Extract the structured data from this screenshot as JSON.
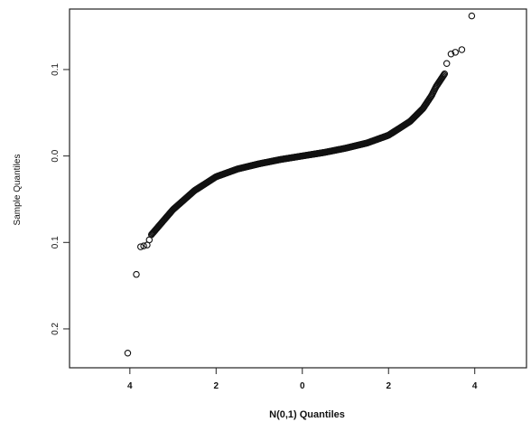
{
  "chart_data": {
    "type": "scatter",
    "xlabel": "N(0,1) Quantiles",
    "ylabel": "Sample Quantiles",
    "x_ticks": [
      {
        "value": -4,
        "label": "4"
      },
      {
        "value": -2,
        "label": "2"
      },
      {
        "value": 0,
        "label": "0"
      },
      {
        "value": 2,
        "label": "2"
      },
      {
        "value": 4,
        "label": "4"
      }
    ],
    "y_ticks": [
      {
        "value": 0.1,
        "label": "0.1"
      },
      {
        "value": 0.0,
        "label": "0.0"
      },
      {
        "value": -0.1,
        "label": "0.1"
      },
      {
        "value": -0.2,
        "label": "0.2"
      }
    ],
    "xlim": [
      -5.4,
      5.2
    ],
    "ylim": [
      -0.245,
      0.17
    ],
    "grid": false,
    "curve": {
      "x_range": [
        -3.5,
        3.3
      ],
      "profile_x": [
        -3.5,
        -3.0,
        -2.5,
        -2.0,
        -1.5,
        -1.0,
        -0.5,
        0.0,
        0.5,
        1.0,
        1.5,
        2.0,
        2.5,
        2.8,
        3.0,
        3.1,
        3.3
      ],
      "profile_y": [
        -0.091,
        -0.062,
        -0.04,
        -0.024,
        -0.015,
        -0.009,
        -0.004,
        0.0,
        0.004,
        0.009,
        0.015,
        0.024,
        0.04,
        0.055,
        0.07,
        0.08,
        0.095
      ]
    },
    "tail_points": [
      {
        "x": -4.05,
        "y": -0.228
      },
      {
        "x": -3.85,
        "y": -0.137
      },
      {
        "x": -3.75,
        "y": -0.105
      },
      {
        "x": -3.68,
        "y": -0.104
      },
      {
        "x": -3.6,
        "y": -0.103
      },
      {
        "x": -3.55,
        "y": -0.097
      },
      {
        "x": 3.35,
        "y": 0.107
      },
      {
        "x": 3.45,
        "y": 0.118
      },
      {
        "x": 3.55,
        "y": 0.12
      },
      {
        "x": 3.7,
        "y": 0.123
      },
      {
        "x": 3.93,
        "y": 0.162
      }
    ]
  }
}
